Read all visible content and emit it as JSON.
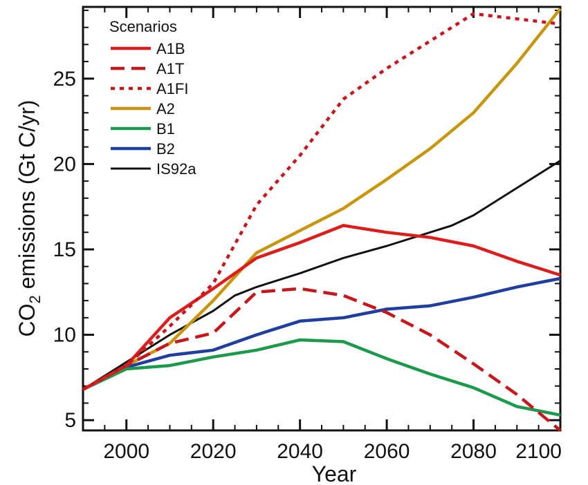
{
  "chart_data": {
    "type": "line",
    "title": "",
    "xlabel": "Year",
    "ylabel_parts": {
      "pre": "CO",
      "sub": "2",
      "post": " emissions (Gt C/yr)"
    },
    "xlim": [
      1990,
      2100
    ],
    "ylim": [
      4.4,
      29.2
    ],
    "xticks": [
      2000,
      2020,
      2040,
      2060,
      2080,
      2100
    ],
    "yticks": [
      5,
      10,
      15,
      20,
      25
    ],
    "legend": {
      "title": "Scenarios",
      "position": "top-left"
    },
    "series": [
      {
        "name": "A1B",
        "color": "#dd1c1c",
        "dash": "solid",
        "x": [
          1990,
          2000,
          2010,
          2020,
          2030,
          2040,
          2050,
          2060,
          2070,
          2080,
          2090,
          2100
        ],
        "y": [
          6.8,
          8.2,
          11.0,
          12.7,
          14.5,
          15.4,
          16.4,
          16.0,
          15.7,
          15.2,
          14.3,
          13.5
        ]
      },
      {
        "name": "A1T",
        "color": "#c8161d",
        "dash": "dashed",
        "x": [
          1990,
          2000,
          2010,
          2020,
          2030,
          2040,
          2050,
          2060,
          2070,
          2080,
          2090,
          2100
        ],
        "y": [
          6.8,
          8.2,
          9.5,
          10.1,
          12.5,
          12.7,
          12.3,
          11.3,
          10.0,
          8.3,
          6.5,
          4.4
        ]
      },
      {
        "name": "A1FI",
        "color": "#c8161d",
        "dash": "dotted",
        "x": [
          1990,
          2000,
          2010,
          2020,
          2030,
          2040,
          2050,
          2060,
          2070,
          2080,
          2090,
          2100
        ],
        "y": [
          6.8,
          8.2,
          10.5,
          13.0,
          17.6,
          20.5,
          23.8,
          25.6,
          27.2,
          28.8,
          28.5,
          28.2
        ]
      },
      {
        "name": "A2",
        "color": "#c8960a",
        "dash": "solid",
        "x": [
          1990,
          2000,
          2010,
          2020,
          2030,
          2040,
          2050,
          2060,
          2070,
          2080,
          2090,
          2100
        ],
        "y": [
          6.8,
          8.2,
          9.5,
          12.0,
          14.8,
          16.1,
          17.4,
          19.1,
          20.9,
          23.0,
          25.9,
          29.1
        ]
      },
      {
        "name": "B1",
        "color": "#1b9a4c",
        "dash": "solid",
        "x": [
          1990,
          2000,
          2010,
          2020,
          2030,
          2040,
          2050,
          2060,
          2070,
          2080,
          2090,
          2100
        ],
        "y": [
          6.8,
          8.0,
          8.2,
          8.7,
          9.1,
          9.7,
          9.6,
          8.6,
          7.7,
          6.9,
          5.8,
          5.3
        ]
      },
      {
        "name": "B2",
        "color": "#1e3ea0",
        "dash": "solid",
        "x": [
          1990,
          2000,
          2010,
          2020,
          2030,
          2040,
          2050,
          2060,
          2070,
          2080,
          2090,
          2100
        ],
        "y": [
          6.8,
          8.1,
          8.8,
          9.1,
          10.0,
          10.8,
          11.0,
          11.5,
          11.7,
          12.2,
          12.8,
          13.3
        ]
      },
      {
        "name": "IS92a",
        "color": "#111111",
        "dash": "solid",
        "x": [
          1990,
          2000,
          2010,
          2020,
          2025,
          2030,
          2040,
          2050,
          2060,
          2075,
          2080,
          2090,
          2100
        ],
        "y": [
          6.8,
          8.4,
          10.0,
          11.4,
          12.3,
          12.8,
          13.6,
          14.5,
          15.2,
          16.4,
          17.0,
          18.6,
          20.2
        ]
      }
    ]
  }
}
